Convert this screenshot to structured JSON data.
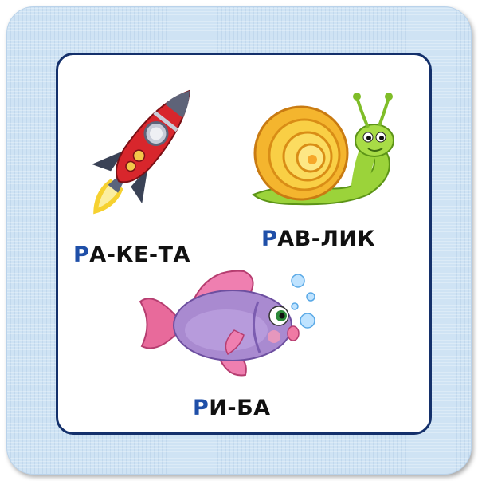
{
  "colors": {
    "frame_bg": "#cfe3f4",
    "inner_border": "#14306b",
    "highlight_letter": "#1f4fa8",
    "text": "#111111"
  },
  "cards": [
    {
      "image": "rocket-icon",
      "first_letter": "Р",
      "rest": "А-КЕ-ТА"
    },
    {
      "image": "snail-icon",
      "first_letter": "Р",
      "rest": "АВ-ЛИК"
    },
    {
      "image": "fish-icon",
      "first_letter": "Р",
      "rest": "И-БА"
    }
  ]
}
